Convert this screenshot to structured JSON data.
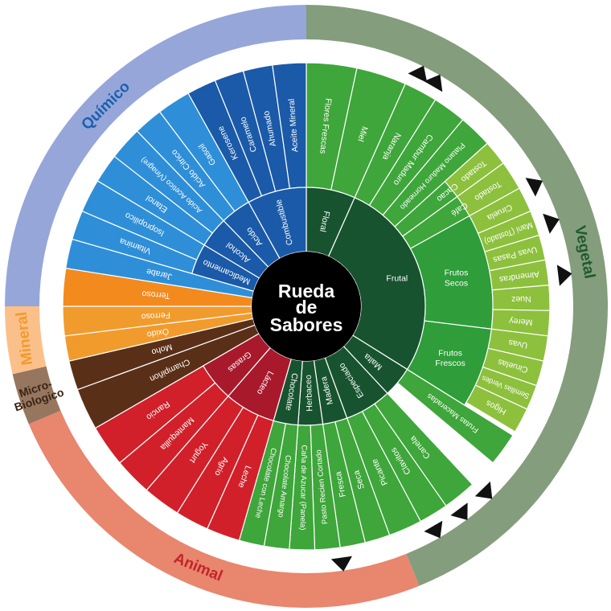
{
  "center": {
    "lines": [
      "Rueda",
      "de",
      "Sabores"
    ],
    "color": "#000000"
  },
  "colors": {
    "ring_quimico": "#96a6d9",
    "ring_vegetal": "#849d7c",
    "ring_mineral": "#fbc08a",
    "ring_micro": "#96765f",
    "ring_animal": "#e8866e",
    "label_quimico": "#1c5faf",
    "label_vegetal": "#1f5a2d",
    "label_mineral": "#f39a2c",
    "label_micro": "#3a2415",
    "label_animal": "#c3242a",
    "marker": "#111111"
  },
  "categories": [
    {
      "id": "quimico",
      "name": "Químico",
      "start": 270,
      "end": 360
    },
    {
      "id": "vegetal",
      "name": "Vegetal",
      "start": 0,
      "end": 158
    },
    {
      "id": "animal",
      "name": "Animal",
      "start": 158,
      "end": 247
    },
    {
      "id": "micro",
      "name": "Micro- Biologico",
      "start": 247,
      "end": 257
    },
    {
      "id": "mineral",
      "name": "Mineral",
      "start": 257,
      "end": 270
    }
  ],
  "markers": [
    26,
    30,
    62,
    71,
    83,
    136,
    143,
    150,
    172
  ],
  "inner": [
    {
      "name": "Floral",
      "start": 0,
      "end": 24,
      "color": "#17532f"
    },
    {
      "name": "Frutal",
      "start": 24,
      "end": 122,
      "color": "#17532f"
    },
    {
      "name": "Malta",
      "start": 122,
      "end": 137,
      "color": "#17532f"
    },
    {
      "name": "Especiado",
      "start": 137,
      "end": 160,
      "color": "#17532f"
    },
    {
      "name": "Madera",
      "start": 160,
      "end": 172,
      "color": "#17532f"
    },
    {
      "name": "Herbaceo",
      "start": 172,
      "end": 184,
      "color": "#17532f"
    },
    {
      "name": "Chocolate",
      "start": 184,
      "end": 196,
      "color": "#17532f"
    },
    {
      "name": "Lácteo",
      "start": 196,
      "end": 221,
      "color": "#a8192c"
    },
    {
      "name": "Grasas",
      "start": 221,
      "end": 240,
      "color": "#a8192c"
    },
    {
      "name": "Medicamento",
      "start": 286,
      "end": 301,
      "color": "#1a5aa8"
    },
    {
      "name": "Alcohol",
      "start": 301,
      "end": 316,
      "color": "#1a5aa8"
    },
    {
      "name": "Acido",
      "start": 316,
      "end": 331,
      "color": "#1a5aa8"
    },
    {
      "name": "Combustible",
      "start": 331,
      "end": 360,
      "color": "#1a5aa8"
    }
  ],
  "mid": [
    {
      "name": "Frutos Secos",
      "start": 61,
      "end": 97,
      "color": "#2e9d3a"
    },
    {
      "name": "Frutos Frescos",
      "start": 97,
      "end": 122,
      "color": "#2e9d3a"
    }
  ],
  "outer": [
    {
      "name": "Flores Frescas",
      "start": 0,
      "end": 12,
      "color": "#3ea63a",
      "from": "inner",
      "ang": 6
    },
    {
      "name": "Miel",
      "start": 12,
      "end": 24,
      "color": "#3ea63a",
      "from": "inner",
      "ang": 18
    },
    {
      "name": "Naranja",
      "start": 24,
      "end": 32,
      "color": "#3ea63a",
      "from": "inner",
      "ang": 28
    },
    {
      "name": "Cambur Maduro",
      "start": 32,
      "end": 40,
      "color": "#3ea63a",
      "from": "inner",
      "ang": 36
    },
    {
      "name": "Platano Maduro Horneado",
      "start": 40,
      "end": 48,
      "color": "#3ea63a",
      "from": "inner",
      "ang": 44
    },
    {
      "name": "Cacao",
      "start": 48,
      "end": 54,
      "color": "#3ea63a",
      "from": "inner",
      "ang": 51
    },
    {
      "name": "Café",
      "start": 54,
      "end": 61,
      "color": "#3ea63a",
      "from": "inner",
      "ang": 57.5
    },
    {
      "name": "Tostado",
      "start": 48,
      "end": 54,
      "color": "#8dc03d",
      "from": "mid",
      "ang": 51
    },
    {
      "name": "Tostado",
      "start": 54,
      "end": 61,
      "color": "#8dc03d",
      "from": "mid",
      "ang": 57.5
    },
    {
      "name": "Ciruela",
      "start": 61,
      "end": 67,
      "color": "#8dc03d",
      "from": "mid",
      "ang": 64
    },
    {
      "name": "Maní (Tostado)",
      "start": 67,
      "end": 73,
      "color": "#8dc03d",
      "from": "mid",
      "ang": 70
    },
    {
      "name": "Uvas Pasas",
      "start": 73,
      "end": 79,
      "color": "#8dc03d",
      "from": "mid",
      "ang": 76
    },
    {
      "name": "Almendras",
      "start": 79,
      "end": 85,
      "color": "#8dc03d",
      "from": "mid",
      "ang": 82
    },
    {
      "name": "Nuez",
      "start": 85,
      "end": 91,
      "color": "#8dc03d",
      "from": "mid",
      "ang": 88
    },
    {
      "name": "Merey",
      "start": 91,
      "end": 97,
      "color": "#8dc03d",
      "from": "mid",
      "ang": 94
    },
    {
      "name": "Uvas",
      "start": 97,
      "end": 103,
      "color": "#8dc03d",
      "from": "mid",
      "ang": 100
    },
    {
      "name": "Ciruelas",
      "start": 103,
      "end": 109,
      "color": "#8dc03d",
      "from": "mid",
      "ang": 106
    },
    {
      "name": "Semillas Verdes",
      "start": 109,
      "end": 115,
      "color": "#8dc03d",
      "from": "mid",
      "ang": 112
    },
    {
      "name": "Higos",
      "start": 115,
      "end": 121,
      "color": "#8dc03d",
      "from": "mid",
      "ang": 118
    },
    {
      "name": "Frutas Maceradas",
      "start": 122,
      "end": 130,
      "color": "#3ea63a",
      "from": "inner",
      "ang": 126
    },
    {
      "name": "Canela",
      "start": 137,
      "end": 145,
      "color": "#3ea63a",
      "from": "inner",
      "ang": 141
    },
    {
      "name": "Clavitos",
      "start": 145,
      "end": 152,
      "color": "#3ea63a",
      "from": "inner",
      "ang": 148.5
    },
    {
      "name": "Picante",
      "start": 152,
      "end": 160,
      "color": "#3ea63a",
      "from": "inner",
      "ang": 156
    },
    {
      "name": "Seca",
      "start": 160,
      "end": 166,
      "color": "#3ea63a",
      "from": "inner",
      "ang": 163
    },
    {
      "name": "Fresca",
      "start": 166,
      "end": 172,
      "color": "#3ea63a",
      "from": "inner",
      "ang": 169
    },
    {
      "name": "Pasto Recien Cortado",
      "start": 172,
      "end": 178,
      "color": "#3ea63a",
      "from": "inner",
      "ang": 175
    },
    {
      "name": "Caña de Azucar (Panela)",
      "start": 178,
      "end": 184,
      "color": "#3ea63a",
      "from": "inner",
      "ang": 181
    },
    {
      "name": "Chocolate Amargo",
      "start": 184,
      "end": 190,
      "color": "#3ea63a",
      "from": "inner",
      "ang": 187
    },
    {
      "name": "Chocolate con Leche",
      "start": 190,
      "end": 196,
      "color": "#3ea63a",
      "from": "inner",
      "ang": 193
    },
    {
      "name": "Leche",
      "start": 196,
      "end": 204,
      "color": "#d1202a",
      "from": "inner",
      "ang": 200
    },
    {
      "name": "Agrio",
      "start": 204,
      "end": 212,
      "color": "#d1202a",
      "from": "inner",
      "ang": 208
    },
    {
      "name": "Yogurt",
      "start": 212,
      "end": 221,
      "color": "#d1202a",
      "from": "inner",
      "ang": 216.5
    },
    {
      "name": "Mantequilla",
      "start": 221,
      "end": 230,
      "color": "#d1202a",
      "from": "inner",
      "ang": 225.5
    },
    {
      "name": "Rancio",
      "start": 230,
      "end": 240,
      "color": "#d1202a",
      "from": "inner",
      "ang": 235
    },
    {
      "name": "Champiñon",
      "start": 240,
      "end": 250,
      "color": "#5a2f18",
      "from": "center",
      "ang": 245
    },
    {
      "name": "Moho",
      "start": 250,
      "end": 257,
      "color": "#5a2f18",
      "from": "center",
      "ang": 253.5
    },
    {
      "name": "Óxido",
      "start": 257,
      "end": 263,
      "color": "#f19b2d",
      "from": "center",
      "ang": 260
    },
    {
      "name": "Ferroso",
      "start": 263,
      "end": 270,
      "color": "#f19b2d",
      "from": "center",
      "ang": 266.5
    },
    {
      "name": "Terroso",
      "start": 270,
      "end": 279,
      "color": "#f38a1e",
      "from": "center",
      "ang": 274.5
    },
    {
      "name": "Jarabe",
      "start": 279,
      "end": 286,
      "color": "#2e8fd8",
      "from": "center",
      "ang": 282.5
    },
    {
      "name": "Vitamina",
      "start": 286,
      "end": 293,
      "color": "#2e8fd8",
      "from": "inner",
      "ang": 289.5
    },
    {
      "name": "Isopropilico",
      "start": 293,
      "end": 301,
      "color": "#2e8fd8",
      "from": "inner",
      "ang": 297
    },
    {
      "name": "Etanol",
      "start": 301,
      "end": 308,
      "color": "#2e8fd8",
      "from": "inner",
      "ang": 304.5
    },
    {
      "name": "Acido Acetico (Vinagre)",
      "start": 308,
      "end": 316,
      "color": "#2e8fd8",
      "from": "inner",
      "ang": 312
    },
    {
      "name": "Acido Citrico",
      "start": 316,
      "end": 323,
      "color": "#2e8fd8",
      "from": "inner",
      "ang": 319.5
    },
    {
      "name": "Gasoil",
      "start": 323,
      "end": 331,
      "color": "#2e8fd8",
      "from": "inner",
      "ang": 327
    },
    {
      "name": "Kerosene",
      "start": 331,
      "end": 338,
      "color": "#1a5aa8",
      "from": "inner",
      "ang": 334.5
    },
    {
      "name": "Caramelo",
      "start": 338,
      "end": 345,
      "color": "#1a5aa8",
      "from": "inner",
      "ang": 341.5
    },
    {
      "name": "Ahumado",
      "start": 345,
      "end": 352,
      "color": "#1a5aa8",
      "from": "inner",
      "ang": 348.5
    },
    {
      "name": "Aceite Mineral",
      "start": 352,
      "end": 360,
      "color": "#1a5aa8",
      "from": "inner",
      "ang": 356
    }
  ]
}
